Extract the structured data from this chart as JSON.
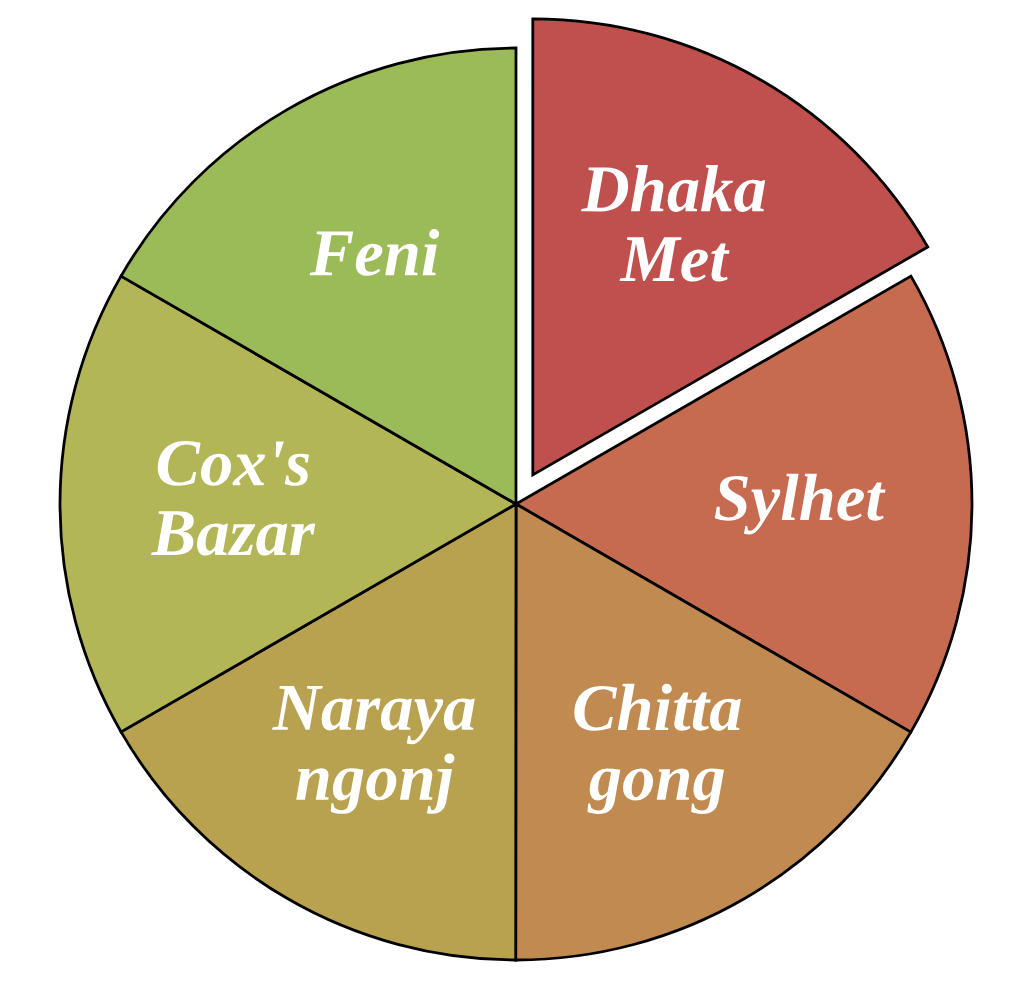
{
  "chart_data": {
    "type": "pie",
    "categories": [
      "Dhaka\nMet",
      "Sylhet",
      "Chitta\ngong",
      "Naraya\nngonj",
      "Cox's\nBazar",
      "Feni"
    ],
    "values": [
      16.67,
      16.67,
      16.67,
      16.66,
      16.66,
      16.67
    ],
    "colors": [
      "#c0504d",
      "#c66a50",
      "#c08a50",
      "#b9a24f",
      "#b3b656",
      "#9bbb59"
    ]
  }
}
